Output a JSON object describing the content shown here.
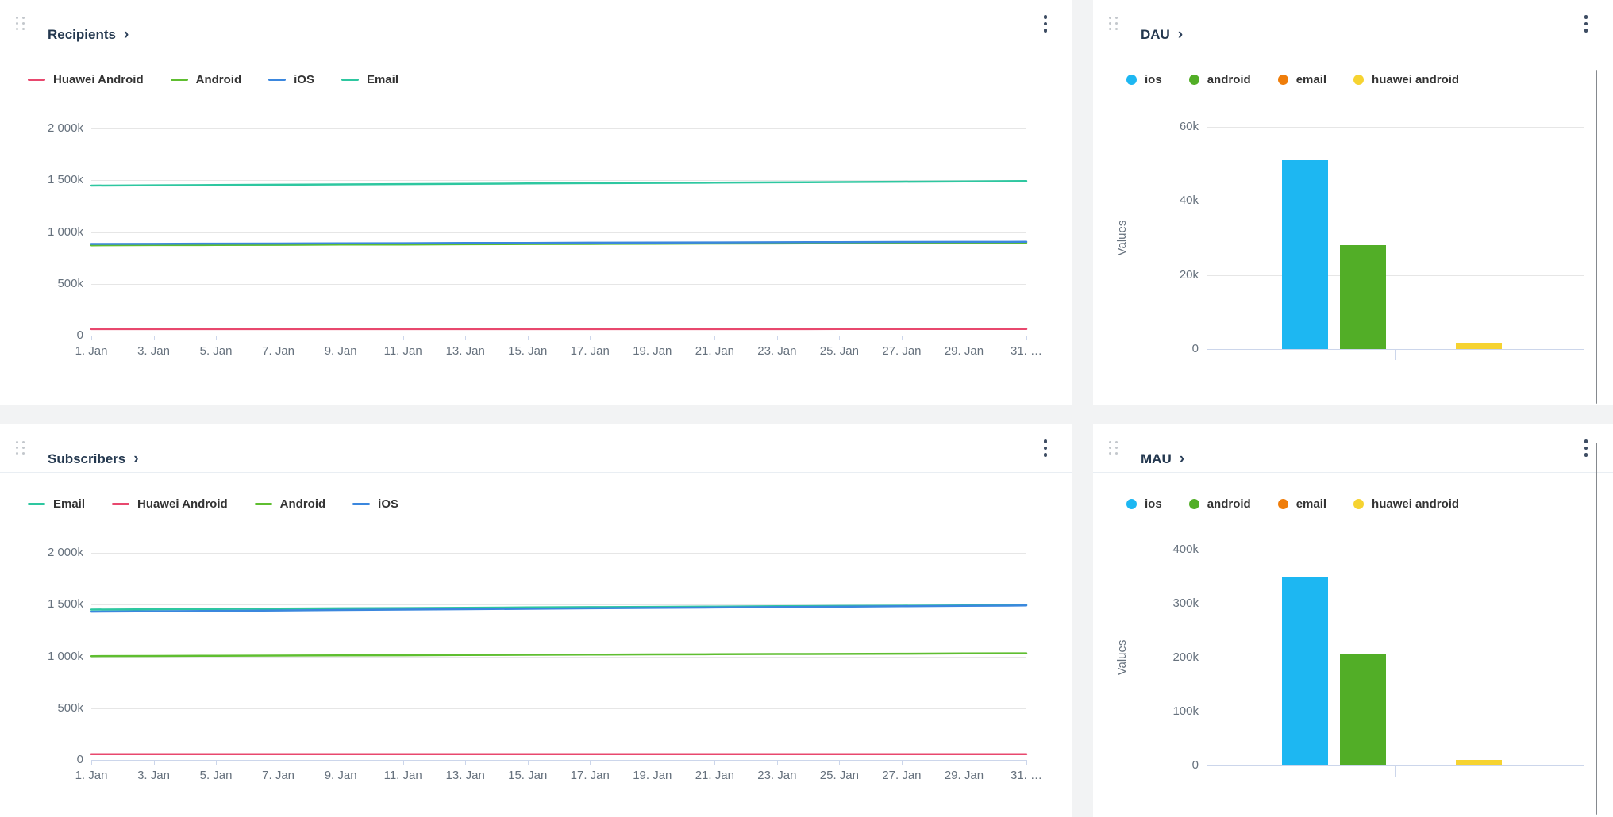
{
  "theme": {
    "page_bg": "#f2f3f4",
    "panel_bg": "#ffffff",
    "divider": "#e9eef3",
    "grid_color": "#e6e6e6",
    "axis_color": "#ccd6eb",
    "axis_label_color": "#66717d",
    "legend_text_color": "#333333",
    "title_color": "#24384f",
    "kebab_color": "#3e4d63",
    "drag_dot_color": "#c3c7cc",
    "scrollbar_color": "#85898e"
  },
  "panels": [
    {
      "title": "Recipients",
      "chevron": "›"
    },
    {
      "title": "DAU",
      "chevron": "›"
    },
    {
      "title": "Subscribers",
      "chevron": "›"
    },
    {
      "title": "MAU",
      "chevron": "›"
    }
  ],
  "chart_data": [
    {
      "type": "line",
      "title": "Recipients",
      "unit": "thousands",
      "legend_position": "top",
      "grid": true,
      "ylim_k": [
        0,
        2000
      ],
      "y_tick_labels": [
        "2 000k",
        "1 500k",
        "1 000k",
        "500k",
        "0"
      ],
      "x_days": [
        1,
        3,
        5,
        7,
        9,
        11,
        13,
        15,
        17,
        19,
        21,
        23,
        25,
        27,
        29,
        31
      ],
      "x_tick_labels": [
        "1. Jan",
        "3. Jan",
        "5. Jan",
        "7. Jan",
        "9. Jan",
        "11. Jan",
        "13. Jan",
        "15. Jan",
        "17. Jan",
        "19. Jan",
        "21. Jan",
        "23. Jan",
        "25. Jan",
        "27. Jan",
        "29. Jan",
        "31. …"
      ],
      "series": [
        {
          "name": "Huawei Android",
          "color": "#e8486e",
          "values_k": [
            62,
            62,
            62,
            62,
            62,
            62,
            62,
            62,
            62,
            62,
            62,
            62,
            63,
            63,
            63,
            63
          ]
        },
        {
          "name": "Android",
          "color": "#5fbe30",
          "values_k": [
            872,
            874,
            875,
            877,
            879,
            880,
            882,
            884,
            885,
            887,
            889,
            890,
            892,
            894,
            895,
            897
          ]
        },
        {
          "name": "iOS",
          "color": "#3b87de",
          "values_k": [
            885,
            886,
            888,
            889,
            891,
            892,
            894,
            895,
            897,
            898,
            900,
            901,
            903,
            904,
            905,
            906
          ]
        },
        {
          "name": "Email",
          "color": "#2ec7a0",
          "values_k": [
            1448,
            1451,
            1454,
            1457,
            1460,
            1463,
            1466,
            1469,
            1472,
            1474,
            1477,
            1480,
            1483,
            1486,
            1489,
            1492
          ]
        }
      ]
    },
    {
      "type": "bar",
      "title": "DAU",
      "unit": "thousands",
      "legend_position": "top",
      "grid": true,
      "ylabel": "Values",
      "ylim_k": [
        0,
        60
      ],
      "y_tick_labels": [
        "60k",
        "40k",
        "20k",
        "0"
      ],
      "categories": [
        "ios",
        "android",
        "email",
        "huawei android"
      ],
      "colors": [
        "#1db7f2",
        "#52ae27",
        "#ef7d0a",
        "#f6d331"
      ],
      "values_k": [
        51,
        28,
        0.1,
        1.5
      ]
    },
    {
      "type": "line",
      "title": "Subscribers",
      "unit": "thousands",
      "legend_position": "top",
      "grid": true,
      "ylim_k": [
        0,
        2000
      ],
      "y_tick_labels": [
        "2 000k",
        "1 500k",
        "1 000k",
        "500k",
        "0"
      ],
      "x_days": [
        1,
        3,
        5,
        7,
        9,
        11,
        13,
        15,
        17,
        19,
        21,
        23,
        25,
        27,
        29,
        31
      ],
      "x_tick_labels": [
        "1. Jan",
        "3. Jan",
        "5. Jan",
        "7. Jan",
        "9. Jan",
        "11. Jan",
        "13. Jan",
        "15. Jan",
        "17. Jan",
        "19. Jan",
        "21. Jan",
        "23. Jan",
        "25. Jan",
        "27. Jan",
        "29. Jan",
        "31. …"
      ],
      "series": [
        {
          "name": "Email",
          "color": "#2ec7a0",
          "values_k": [
            1452,
            1455,
            1458,
            1461,
            1464,
            1467,
            1470,
            1473,
            1476,
            1478,
            1481,
            1484,
            1487,
            1490,
            1493,
            1496
          ]
        },
        {
          "name": "Huawei Android",
          "color": "#e8486e",
          "values_k": [
            55,
            55,
            55,
            55,
            55,
            55,
            55,
            55,
            55,
            55,
            55,
            55,
            55,
            56,
            56,
            56
          ]
        },
        {
          "name": "Android",
          "color": "#5fbe30",
          "values_k": [
            1002,
            1004,
            1006,
            1008,
            1010,
            1011,
            1013,
            1015,
            1017,
            1019,
            1021,
            1023,
            1024,
            1026,
            1028,
            1030
          ]
        },
        {
          "name": "iOS",
          "color": "#3b87de",
          "values_k": [
            1432,
            1436,
            1440,
            1444,
            1448,
            1452,
            1456,
            1460,
            1464,
            1468,
            1472,
            1476,
            1480,
            1484,
            1488,
            1492
          ]
        }
      ]
    },
    {
      "type": "bar",
      "title": "MAU",
      "unit": "thousands",
      "legend_position": "top",
      "grid": true,
      "ylabel": "Values",
      "ylim_k": [
        0,
        400
      ],
      "y_tick_labels": [
        "400k",
        "300k",
        "200k",
        "100k",
        "0"
      ],
      "categories": [
        "ios",
        "android",
        "email",
        "huawei android"
      ],
      "colors": [
        "#1db7f2",
        "#52ae27",
        "#ef7d0a",
        "#f6d331"
      ],
      "values_k": [
        350,
        206,
        2,
        10
      ]
    }
  ]
}
